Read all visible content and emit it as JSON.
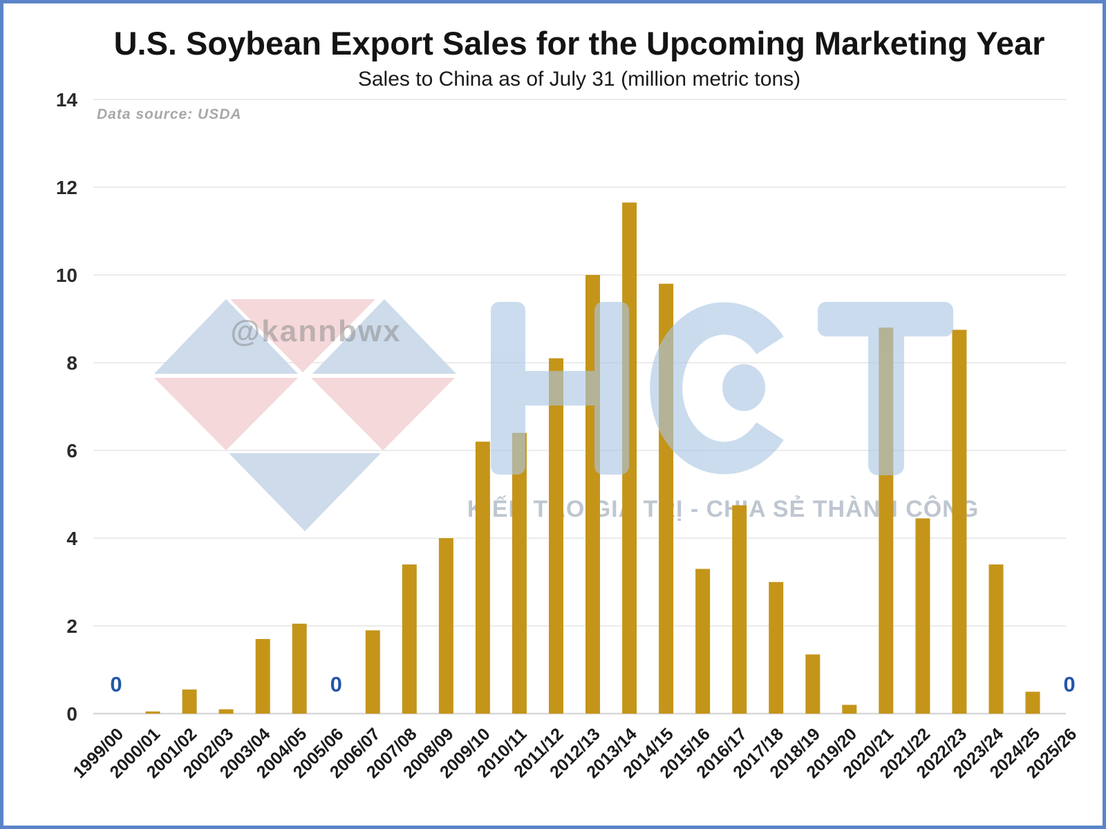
{
  "frame": {
    "border_color": "#5b84c8",
    "background": "#ffffff"
  },
  "header": {
    "title": "U.S. Soybean Export Sales for the Upcoming Marketing Year",
    "subtitle": "Sales to China as of July 31 (million metric tons)",
    "data_source": "Data source: USDA"
  },
  "watermarks": {
    "handle": "@kannbwx",
    "logo_text": "HCT",
    "slogan": "KIẾN TẠO GIÁ TRỊ - CHIA SẺ THÀNH CÔNG",
    "logo_color": "#abc6e4",
    "diamond_blue": "#c8d8e9",
    "diamond_pink": "#f4d4d7"
  },
  "chart_data": {
    "type": "bar",
    "title": "U.S. Soybean Export Sales for the Upcoming Marketing Year",
    "subtitle": "Sales to China as of July 31 (million metric tons)",
    "categories": [
      "1999/00",
      "2000/01",
      "2001/02",
      "2002/03",
      "2003/04",
      "2004/05",
      "2005/06",
      "2006/07",
      "2007/08",
      "2008/09",
      "2009/10",
      "2010/11",
      "2011/12",
      "2012/13",
      "2013/14",
      "2014/15",
      "2015/16",
      "2016/17",
      "2017/18",
      "2018/19",
      "2019/20",
      "2020/21",
      "2021/22",
      "2022/23",
      "2023/24",
      "2024/25",
      "2025/26"
    ],
    "values": [
      0,
      0.05,
      0.55,
      0.1,
      1.7,
      2.05,
      0,
      1.9,
      3.4,
      4.0,
      6.2,
      6.4,
      8.1,
      10.0,
      11.65,
      9.8,
      3.3,
      4.75,
      3.0,
      1.35,
      0.2,
      8.8,
      4.45,
      8.75,
      3.4,
      0.5,
      0
    ],
    "zero_value_label": "0",
    "yticks": [
      0,
      2,
      4,
      6,
      8,
      10,
      12,
      14
    ],
    "ylim": [
      0,
      14
    ],
    "grid": true,
    "bar_color": "#c49519",
    "zero_label_color": "#2357a8"
  }
}
